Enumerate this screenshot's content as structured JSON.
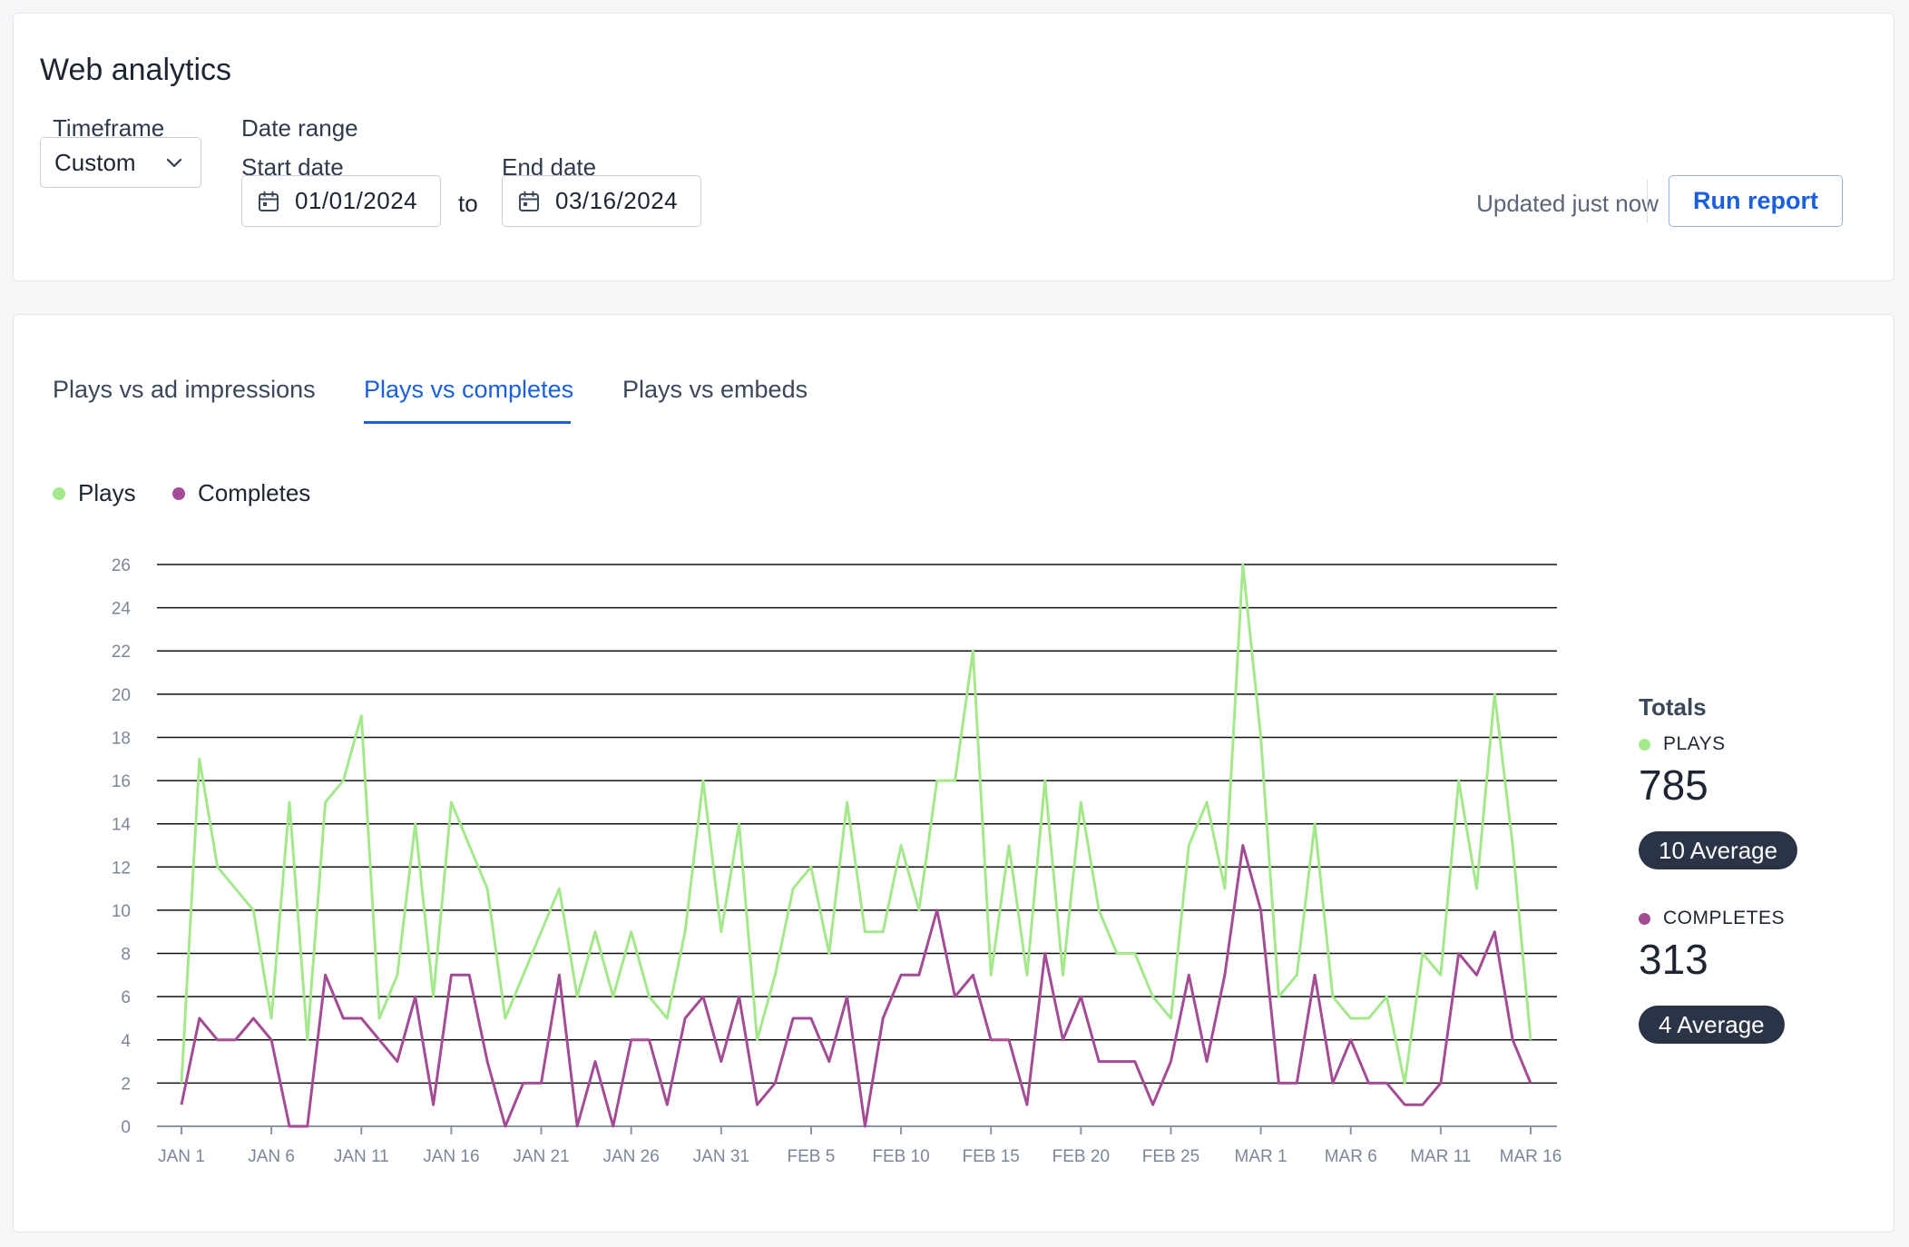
{
  "header": {
    "title": "Web analytics",
    "timeframe_label": "Timeframe",
    "timeframe_value": "Custom",
    "date_range_label": "Date range",
    "start_date_label": "Start date",
    "start_date_value": "01/01/2024",
    "to_text": "to",
    "end_date_label": "End date",
    "end_date_value": "03/16/2024",
    "updated_text": "Updated just now",
    "run_report_label": "Run report"
  },
  "tabs": [
    {
      "label": "Plays vs ad impressions",
      "active": false
    },
    {
      "label": "Plays vs completes",
      "active": true
    },
    {
      "label": "Plays vs embeds",
      "active": false
    }
  ],
  "colors": {
    "plays": "#a3e88a",
    "completes": "#a44b95",
    "accent": "#1a5fdb"
  },
  "icons": {
    "select_chevron": "chevron-down-icon",
    "date_picker": "calendar-icon"
  },
  "totals": {
    "title": "Totals",
    "plays_label": "PLAYS",
    "plays_value": "785",
    "plays_average": "10 Average",
    "completes_label": "COMPLETES",
    "completes_value": "313",
    "completes_average": "4 Average"
  },
  "chart_data": {
    "type": "line",
    "legend": [
      "Plays",
      "Completes"
    ],
    "legend_position": "top-left",
    "grid": true,
    "ylim": [
      0,
      26
    ],
    "yticks": [
      "0",
      "2",
      "4",
      "6",
      "8",
      "10",
      "12",
      "14",
      "16",
      "18",
      "20",
      "22",
      "24",
      "26"
    ],
    "xlim": [
      "2024-01-01",
      "2024-03-16"
    ],
    "x_tick_labels": [
      "JAN 1",
      "JAN 6",
      "JAN 11",
      "JAN 16",
      "JAN 21",
      "JAN 26",
      "JAN 31",
      "FEB 5",
      "FEB 10",
      "FEB 15",
      "FEB 20",
      "FEB 25",
      "MAR 1",
      "MAR 6",
      "MAR 11",
      "MAR 16"
    ],
    "series": [
      {
        "name": "Plays",
        "values": [
          2,
          17,
          12,
          11,
          10,
          5,
          15,
          4,
          15,
          16,
          19,
          5,
          7,
          14,
          6,
          15,
          13,
          11,
          5,
          7,
          9,
          11,
          6,
          9,
          6,
          9,
          6,
          5,
          9,
          16,
          9,
          14,
          4,
          7,
          11,
          12,
          8,
          15,
          9,
          9,
          13,
          10,
          16,
          16,
          22,
          7,
          13,
          7,
          16,
          7,
          15,
          10,
          8,
          8,
          6,
          5,
          13,
          15,
          11,
          26,
          18,
          6,
          7,
          14,
          6,
          5,
          5,
          6,
          2,
          8,
          7,
          16,
          11,
          20,
          13,
          4
        ]
      },
      {
        "name": "Completes",
        "values": [
          1,
          5,
          4,
          4,
          5,
          4,
          0,
          0,
          7,
          5,
          5,
          4,
          3,
          6,
          1,
          7,
          7,
          3,
          0,
          2,
          2,
          7,
          0,
          3,
          0,
          4,
          4,
          1,
          5,
          6,
          3,
          6,
          1,
          2,
          5,
          5,
          3,
          6,
          0,
          5,
          7,
          7,
          10,
          6,
          7,
          4,
          4,
          1,
          8,
          4,
          6,
          3,
          3,
          3,
          1,
          3,
          7,
          3,
          7,
          13,
          10,
          2,
          2,
          7,
          2,
          4,
          2,
          2,
          1,
          1,
          2,
          8,
          7,
          9,
          4,
          2
        ]
      }
    ]
  }
}
